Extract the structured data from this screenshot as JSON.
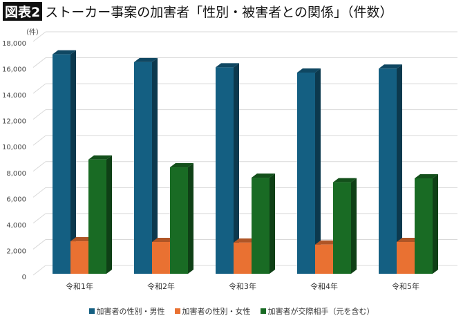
{
  "title": {
    "tag": "図表2",
    "text": "ストーカー事案の加害者「性別・被害者との関係」（件数）"
  },
  "chart_data": {
    "type": "bar",
    "style": "3d-clustered-column",
    "ylabel": "（件）",
    "ylim": [
      0,
      18000
    ],
    "yticks": [
      "0",
      "2,000",
      "4,000",
      "6,000",
      "8,000",
      "10,000",
      "12,000",
      "14,000",
      "16,000",
      "18,000"
    ],
    "grid": true,
    "legend_position": "bottom",
    "categories": [
      "令和1年",
      "令和2年",
      "令和3年",
      "令和4年",
      "令和5年"
    ],
    "series": [
      {
        "name": "加害者の性別・男性",
        "color": "#145f82",
        "values": [
          16900,
          16300,
          15900,
          15500,
          15800
        ]
      },
      {
        "name": "加害者の性別・女性",
        "color": "#e97132",
        "values": [
          2500,
          2450,
          2400,
          2250,
          2450
        ]
      },
      {
        "name": "加害者が交際相手（元を含む）",
        "color": "#196b24",
        "values": [
          8800,
          8200,
          7400,
          7050,
          7350
        ]
      }
    ]
  }
}
